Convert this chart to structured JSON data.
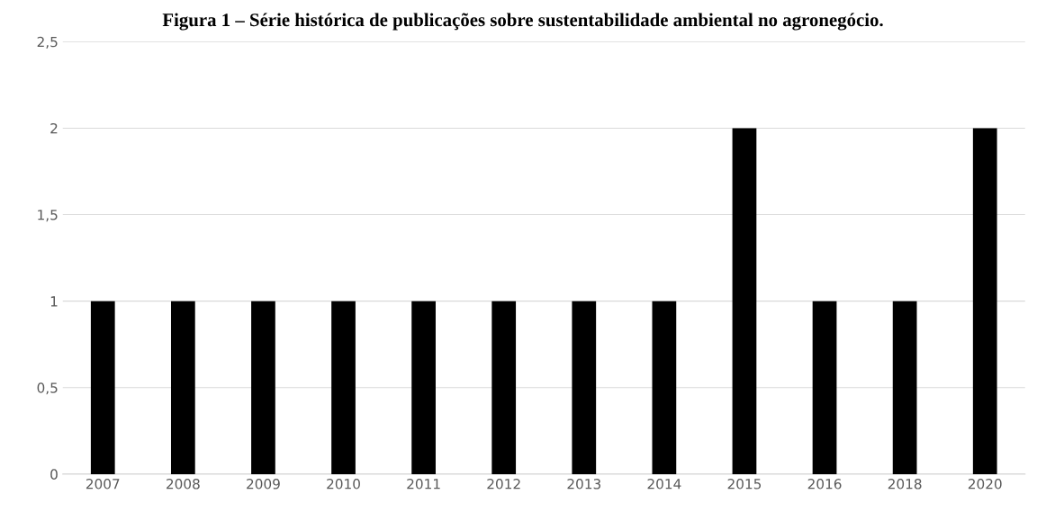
{
  "chart_data": {
    "type": "bar",
    "title": "Figura 1 – Série histórica de publicações sobre sustentabilidade ambiental no agronegócio.",
    "categories": [
      "2007",
      "2008",
      "2009",
      "2010",
      "2011",
      "2012",
      "2013",
      "2014",
      "2015",
      "2016",
      "2018",
      "2020"
    ],
    "values": [
      1,
      1,
      1,
      1,
      1,
      1,
      1,
      1,
      2,
      1,
      1,
      2
    ],
    "color": "#000000",
    "ylim": [
      0,
      2.5
    ],
    "yticks": [
      {
        "value": 0,
        "label": "0"
      },
      {
        "value": 0.5,
        "label": "0,5"
      },
      {
        "value": 1,
        "label": "1"
      },
      {
        "value": 1.5,
        "label": "1,5"
      },
      {
        "value": 2,
        "label": "2"
      },
      {
        "value": 2.5,
        "label": "2,5"
      }
    ],
    "grid": "y"
  }
}
